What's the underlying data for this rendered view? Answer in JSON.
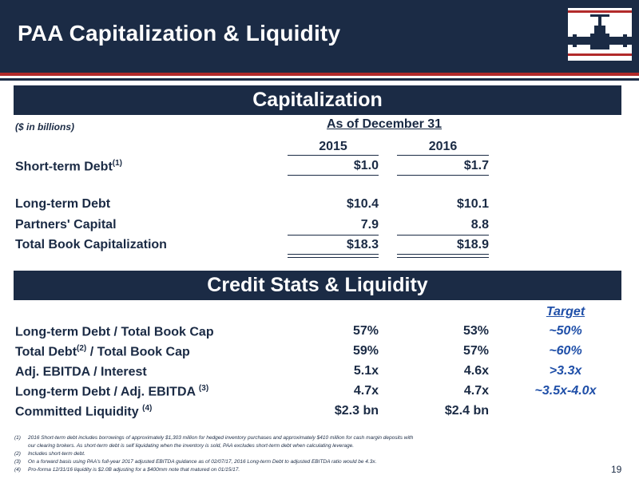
{
  "header": {
    "title": "PAA Capitalization & Liquidity"
  },
  "capitalization": {
    "banner": "Capitalization",
    "units": "($ in billions)",
    "as_of": "As of December 31",
    "years": [
      "2015",
      "2016"
    ],
    "rows": [
      {
        "label": "Short-term Debt",
        "sup": "(1)",
        "v2015": "$1.0",
        "v2016": "$1.7"
      },
      {
        "label": "Long-term Debt",
        "sup": "",
        "v2015": "$10.4",
        "v2016": "$10.1"
      },
      {
        "label": "Partners' Capital",
        "sup": "",
        "v2015": "7.9",
        "v2016": "8.8"
      },
      {
        "label": "Total Book Capitalization",
        "sup": "",
        "v2015": "$18.3",
        "v2016": "$18.9"
      }
    ]
  },
  "credit": {
    "banner": "Credit Stats & Liquidity",
    "target_header": "Target",
    "rows": [
      {
        "label_pre": "Long-term Debt / Total Book Cap",
        "sup": "",
        "label_post": "",
        "v2015": "57%",
        "v2016": "53%",
        "target": "~50%"
      },
      {
        "label_pre": "Total Debt",
        "sup": "(2)",
        "label_post": " / Total Book Cap",
        "v2015": "59%",
        "v2016": "57%",
        "target": "~60%"
      },
      {
        "label_pre": "Adj. EBITDA / Interest",
        "sup": "",
        "label_post": "",
        "v2015": "5.1x",
        "v2016": "4.6x",
        "target": ">3.3x"
      },
      {
        "label_pre": "Long-term Debt / Adj. EBITDA ",
        "sup": "(3)",
        "label_post": "",
        "v2015": "4.7x",
        "v2016": "4.7x",
        "target": "~3.5x-4.0x"
      },
      {
        "label_pre": "Committed Liquidity ",
        "sup": "(4)",
        "label_post": "",
        "v2015": "$2.3 bn",
        "v2016": "$2.4 bn",
        "target": ""
      }
    ]
  },
  "footnotes": [
    {
      "num": "(1)",
      "text": "2016 Short-term debt includes borrowings of approximately $1,303 million for hedged inventory purchases and approximately $410 million for cash margin deposits with"
    },
    {
      "num": "",
      "text": "our clearing brokers.  As short-term debt is self liquidating when the inventory is sold, PAA excludes short-term debt when calculating leverage."
    },
    {
      "num": "(2)",
      "text": "Includes short-term debt."
    },
    {
      "num": "(3)",
      "text": "On a forward basis using PAA's full-year 2017 adjusted EBITDA guidance as of 02/07/17,  2016 Long-term Debt to adjusted EBITDA ratio would be 4.3x."
    },
    {
      "num": "(4)",
      "text": "Pro-forma 12/31/16 liquidity is $2.0B  adjusting for a $400mm note that matured on 01/15/17."
    }
  ],
  "page_number": "19",
  "colors": {
    "navy": "#1b2b45",
    "red": "#b22a2a",
    "target_blue": "#1f4fa8"
  }
}
